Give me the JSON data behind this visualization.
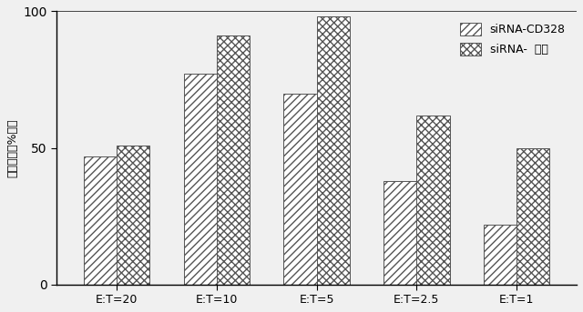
{
  "categories": [
    "E:T=20",
    "E:T=10",
    "E:T=5",
    "E:T=2.5",
    "E:T=1"
  ],
  "siRNA_CD328": [
    47,
    77,
    70,
    38,
    22
  ],
  "siRNA_control": [
    51,
    91,
    98,
    62,
    50
  ],
  "ylabel": "特異的溶解%割合",
  "ylim": [
    0,
    100
  ],
  "yticks": [
    0,
    50,
    100
  ],
  "legend_labels": [
    "siRNA-CD328",
    "siRNA-  対照"
  ],
  "bar_width": 0.33,
  "hatch_cd328": "////",
  "hatch_control": "xxxx",
  "bar_color": "white",
  "edge_color": "#555555",
  "bg_color": "#f5f5f5"
}
